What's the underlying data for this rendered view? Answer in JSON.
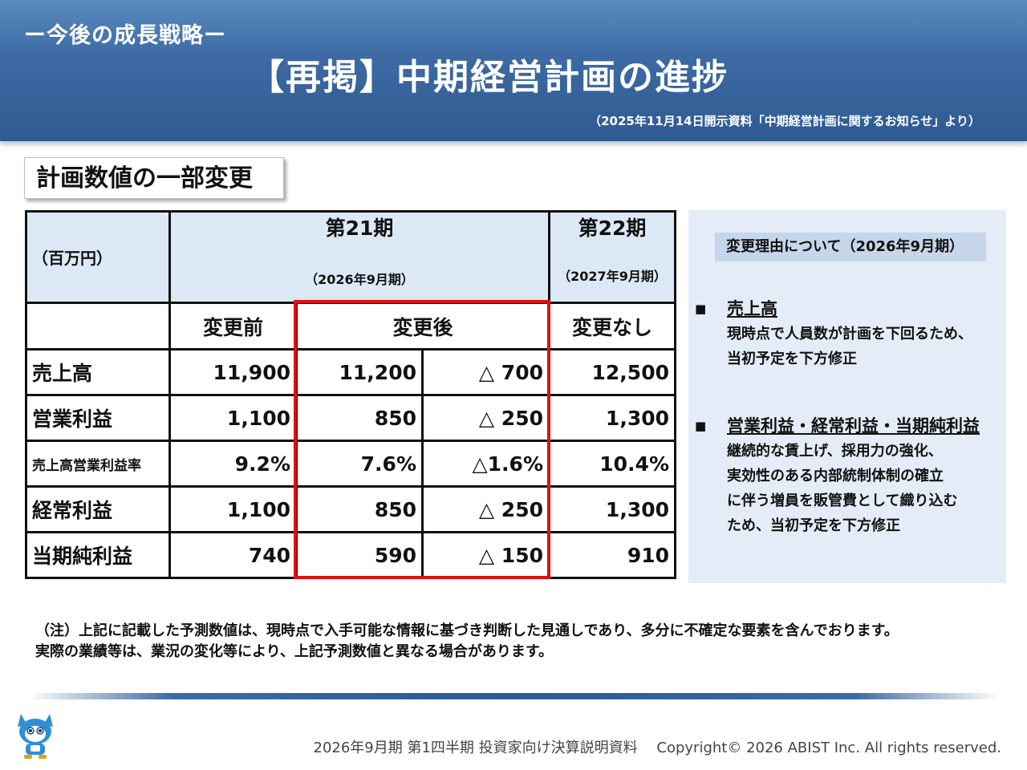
{
  "header": {
    "subtitle": "ー今後の成長戦略ー",
    "title": "【再掲】中期経営計画の進捗",
    "source": "（2025年11月14日開示資料「中期経営計画に関するお知らせ」より）"
  },
  "section_title": "計画数値の一部変更",
  "table": {
    "unit": "（百万円）",
    "period21": {
      "name": "第21期",
      "date": "（2026年9月期）"
    },
    "period22": {
      "name": "第22期",
      "date": "（2027年9月期）"
    },
    "col_before": "変更前",
    "col_after": "変更後",
    "col_nochange": "変更なし",
    "rows": [
      {
        "label": "売上高",
        "before": "11,900",
        "after": "11,200",
        "diff": "△ 700",
        "next": "12,500"
      },
      {
        "label": "営業利益",
        "before": "1,100",
        "after": "850",
        "diff": "△ 250",
        "next": "1,300"
      },
      {
        "label": "売上高営業利益率",
        "before": "9.2%",
        "after": "7.6%",
        "diff": "△1.6%",
        "next": "10.4%"
      },
      {
        "label": "経常利益",
        "before": "1,100",
        "after": "850",
        "diff": "△ 250",
        "next": "1,300"
      },
      {
        "label": "当期純利益",
        "before": "740",
        "after": "590",
        "diff": "△ 150",
        "next": "910"
      }
    ]
  },
  "panel": {
    "title": "変更理由について（2026年9月期）",
    "bullet_glyph": "■",
    "reasons": [
      {
        "heading": "売上高",
        "lines": [
          "現時点で人員数が計画を下回るため、",
          "当初予定を下方修正"
        ]
      },
      {
        "heading": "営業利益・経常利益・当期純利益",
        "lines": [
          "継続的な賃上げ、採用力の強化、",
          "実効性のある内部統制体制の確立",
          "に伴う増員を販管費として織り込む",
          "ため、当初予定を下方修正"
        ]
      }
    ]
  },
  "note": {
    "line1": "（注）上記に記載した予測数値は、現時点で入手可能な情報に基づき判断した見通しであり、多分に不確定な要素を含んでおります。",
    "line2": "実際の業績等は、業況の変化等により、上記予測数値と異なる場合があります。"
  },
  "footer": {
    "doc": "2026年9月期 第1四半期 投資家向け決算説明資料",
    "copyright": "Copyright© 2026 ABIST Inc. All rights reserved."
  },
  "colors": {
    "header_blue": "#2f5a92",
    "table_header": "#dce8f5",
    "panel_bg": "#e4ecf7",
    "highlight_red": "#e01010"
  }
}
